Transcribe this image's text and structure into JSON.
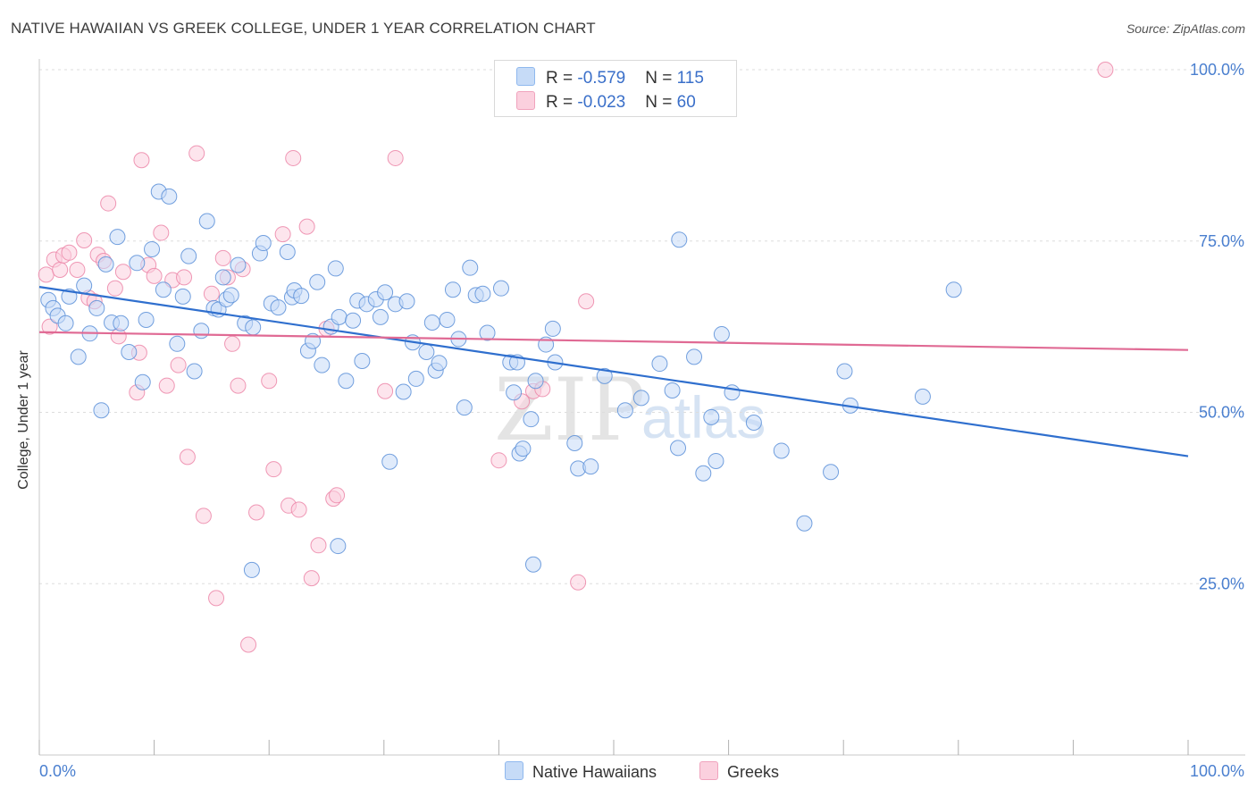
{
  "title": "NATIVE HAWAIIAN VS GREEK COLLEGE, UNDER 1 YEAR CORRELATION CHART",
  "source": "Source: ZipAtlas.com",
  "watermark": "ZIPatlas",
  "stats": [
    {
      "r_label": "R = ",
      "r_value": "-0.579",
      "n_label": "N = ",
      "n_value": "115",
      "color": "#8fb8ee",
      "fill": "#c6dbf7"
    },
    {
      "r_label": "R = ",
      "r_value": "-0.023",
      "n_label": "N = ",
      "n_value": " 60",
      "color": "#f0a3bd",
      "fill": "#fbd0de"
    }
  ],
  "legend": [
    {
      "label": "Native Hawaiians",
      "color": "#8fb8ee",
      "fill": "#c6dbf7"
    },
    {
      "label": "Greeks",
      "color": "#f0a3bd",
      "fill": "#fbd0de"
    }
  ],
  "chart_data": {
    "type": "scatter",
    "xlabel": "",
    "ylabel": "College, Under 1 year",
    "xlim": [
      0,
      100
    ],
    "ylim": [
      0,
      100
    ],
    "x_tick_labels": [
      "0.0%",
      "100.0%"
    ],
    "y_tick_labels": [
      "25.0%",
      "50.0%",
      "75.0%",
      "100.0%"
    ],
    "y_ticks": [
      25,
      50,
      75,
      100
    ],
    "grid": true,
    "series": [
      {
        "name": "Native Hawaiians",
        "color": "#5b8fd8",
        "fill": "#c6dbf7",
        "trend": {
          "x": [
            0,
            100
          ],
          "y": [
            68.3,
            43.6
          ],
          "color": "#2f6fce"
        },
        "points": [
          [
            0.8,
            66.4
          ],
          [
            1.2,
            65.2
          ],
          [
            1.6,
            64.1
          ],
          [
            2.3,
            63.0
          ],
          [
            2.6,
            66.9
          ],
          [
            3.4,
            58.1
          ],
          [
            3.9,
            68.5
          ],
          [
            4.4,
            61.5
          ],
          [
            5.0,
            65.2
          ],
          [
            5.4,
            50.3
          ],
          [
            5.8,
            71.6
          ],
          [
            6.3,
            63.1
          ],
          [
            6.8,
            75.6
          ],
          [
            7.1,
            63.0
          ],
          [
            7.8,
            58.8
          ],
          [
            8.5,
            71.8
          ],
          [
            9.0,
            54.4
          ],
          [
            9.3,
            63.5
          ],
          [
            9.8,
            73.8
          ],
          [
            10.4,
            82.2
          ],
          [
            10.8,
            67.9
          ],
          [
            11.3,
            81.5
          ],
          [
            12.0,
            60.0
          ],
          [
            12.5,
            66.9
          ],
          [
            13.0,
            72.8
          ],
          [
            13.5,
            56.0
          ],
          [
            14.1,
            61.9
          ],
          [
            14.6,
            77.9
          ],
          [
            15.2,
            65.2
          ],
          [
            15.6,
            65.0
          ],
          [
            16.0,
            69.7
          ],
          [
            16.3,
            66.5
          ],
          [
            16.7,
            67.1
          ],
          [
            17.3,
            71.5
          ],
          [
            17.9,
            63.0
          ],
          [
            18.6,
            62.4
          ],
          [
            19.2,
            73.2
          ],
          [
            19.5,
            74.7
          ],
          [
            20.2,
            65.9
          ],
          [
            20.8,
            65.3
          ],
          [
            21.6,
            73.4
          ],
          [
            22.0,
            66.8
          ],
          [
            22.2,
            67.8
          ],
          [
            22.8,
            67.0
          ],
          [
            23.4,
            59.0
          ],
          [
            23.8,
            60.4
          ],
          [
            24.2,
            69.0
          ],
          [
            24.6,
            56.9
          ],
          [
            25.4,
            62.5
          ],
          [
            25.8,
            71.0
          ],
          [
            26.1,
            63.9
          ],
          [
            26.7,
            54.6
          ],
          [
            27.3,
            63.4
          ],
          [
            27.7,
            66.3
          ],
          [
            28.1,
            57.5
          ],
          [
            28.5,
            65.8
          ],
          [
            29.3,
            66.5
          ],
          [
            29.7,
            63.9
          ],
          [
            30.1,
            67.5
          ],
          [
            30.5,
            42.8
          ],
          [
            31.0,
            65.8
          ],
          [
            31.7,
            53.0
          ],
          [
            32.0,
            66.2
          ],
          [
            32.5,
            60.2
          ],
          [
            32.8,
            54.9
          ],
          [
            33.7,
            58.8
          ],
          [
            34.2,
            63.1
          ],
          [
            34.5,
            56.1
          ],
          [
            34.8,
            57.2
          ],
          [
            35.5,
            63.5
          ],
          [
            36.0,
            67.9
          ],
          [
            36.5,
            60.7
          ],
          [
            37.0,
            50.7
          ],
          [
            37.5,
            71.1
          ],
          [
            38.0,
            67.1
          ],
          [
            38.6,
            67.3
          ],
          [
            39.0,
            61.6
          ],
          [
            40.2,
            68.1
          ],
          [
            41.0,
            57.3
          ],
          [
            41.3,
            52.9
          ],
          [
            41.6,
            57.3
          ],
          [
            41.8,
            44.0
          ],
          [
            42.1,
            44.7
          ],
          [
            42.8,
            49.0
          ],
          [
            43.2,
            54.6
          ],
          [
            44.1,
            59.9
          ],
          [
            44.7,
            62.2
          ],
          [
            44.9,
            57.3
          ],
          [
            46.6,
            45.5
          ],
          [
            46.9,
            41.8
          ],
          [
            48.0,
            42.1
          ],
          [
            49.2,
            55.3
          ],
          [
            51.0,
            50.3
          ],
          [
            52.4,
            52.1
          ],
          [
            54.0,
            57.1
          ],
          [
            55.1,
            53.2
          ],
          [
            55.6,
            44.8
          ],
          [
            55.7,
            75.2
          ],
          [
            57.0,
            58.1
          ],
          [
            57.8,
            41.1
          ],
          [
            58.5,
            49.3
          ],
          [
            58.9,
            42.9
          ],
          [
            59.4,
            61.4
          ],
          [
            60.3,
            52.9
          ],
          [
            62.2,
            48.5
          ],
          [
            64.6,
            44.4
          ],
          [
            66.6,
            33.8
          ],
          [
            68.9,
            41.3
          ],
          [
            70.1,
            56.0
          ],
          [
            70.6,
            51.0
          ],
          [
            76.9,
            52.3
          ],
          [
            79.6,
            67.9
          ],
          [
            26.0,
            30.5
          ],
          [
            43.0,
            27.8
          ],
          [
            18.5,
            27.0
          ]
        ]
      },
      {
        "name": "Greeks",
        "color": "#ec86a8",
        "fill": "#fbd0de",
        "trend": {
          "x": [
            0,
            100
          ],
          "y": [
            61.7,
            59.1
          ],
          "color": "#e06a94"
        },
        "points": [
          [
            0.6,
            70.1
          ],
          [
            0.9,
            62.5
          ],
          [
            1.3,
            72.3
          ],
          [
            1.8,
            70.8
          ],
          [
            2.1,
            72.9
          ],
          [
            2.6,
            73.3
          ],
          [
            3.3,
            70.8
          ],
          [
            3.9,
            75.1
          ],
          [
            4.3,
            66.7
          ],
          [
            4.8,
            66.2
          ],
          [
            5.1,
            73.0
          ],
          [
            5.6,
            72.1
          ],
          [
            6.0,
            80.5
          ],
          [
            6.6,
            68.1
          ],
          [
            6.9,
            61.1
          ],
          [
            7.3,
            70.5
          ],
          [
            8.5,
            52.9
          ],
          [
            8.7,
            58.7
          ],
          [
            8.9,
            86.8
          ],
          [
            9.5,
            71.5
          ],
          [
            10.0,
            69.9
          ],
          [
            10.6,
            76.2
          ],
          [
            11.1,
            53.9
          ],
          [
            11.6,
            69.3
          ],
          [
            12.1,
            56.9
          ],
          [
            12.6,
            69.7
          ],
          [
            12.9,
            43.5
          ],
          [
            13.7,
            87.8
          ],
          [
            14.3,
            34.9
          ],
          [
            15.0,
            67.3
          ],
          [
            15.4,
            22.9
          ],
          [
            16.0,
            72.5
          ],
          [
            16.4,
            69.7
          ],
          [
            16.8,
            60.0
          ],
          [
            17.3,
            53.9
          ],
          [
            17.7,
            70.9
          ],
          [
            18.2,
            16.1
          ],
          [
            18.9,
            35.4
          ],
          [
            20.0,
            54.6
          ],
          [
            20.4,
            41.7
          ],
          [
            21.2,
            76.0
          ],
          [
            21.7,
            36.4
          ],
          [
            22.1,
            87.1
          ],
          [
            22.6,
            35.8
          ],
          [
            23.3,
            77.1
          ],
          [
            23.7,
            25.8
          ],
          [
            24.3,
            30.6
          ],
          [
            25.0,
            62.2
          ],
          [
            25.6,
            37.4
          ],
          [
            25.9,
            37.9
          ],
          [
            30.1,
            53.1
          ],
          [
            31.0,
            87.1
          ],
          [
            40.0,
            43.0
          ],
          [
            42.0,
            51.6
          ],
          [
            43.0,
            53.1
          ],
          [
            46.9,
            25.2
          ],
          [
            47.6,
            66.2
          ],
          [
            56.0,
            99.7
          ],
          [
            92.8,
            100.0
          ],
          [
            43.8,
            53.4
          ]
        ]
      }
    ]
  }
}
